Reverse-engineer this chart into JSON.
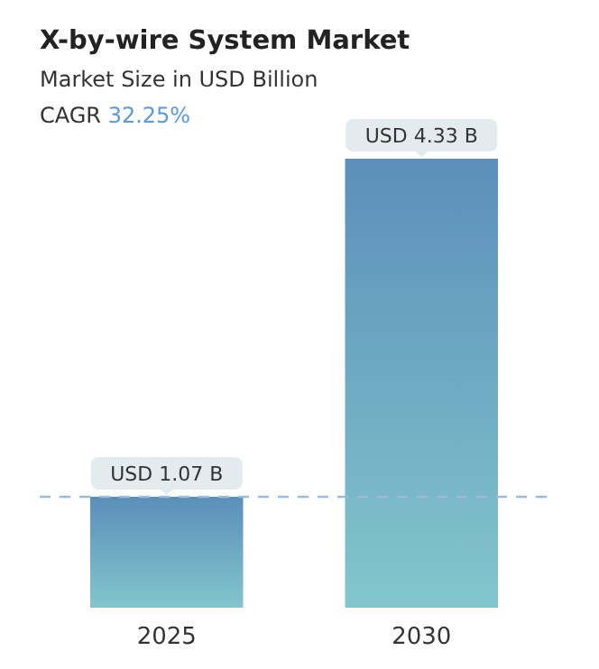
{
  "chart_data": {
    "type": "bar",
    "title": "X-by-wire System Market",
    "subtitle": "Market Size in USD Billion",
    "annotations": [
      "CAGR 32.25%"
    ],
    "categories": [
      "2025",
      "2030"
    ],
    "series": [
      {
        "color": "#5b8fba",
        "values": [
          1.07,
          4.33
        ],
        "value_labels": [
          "USD 1.07 B",
          "USD 4.33 B"
        ]
      }
    ],
    "ref_lines": [
      {
        "axis": "y",
        "value": 1.07,
        "color": "#9bbbd8",
        "line_style": "dashed"
      }
    ]
  }
}
